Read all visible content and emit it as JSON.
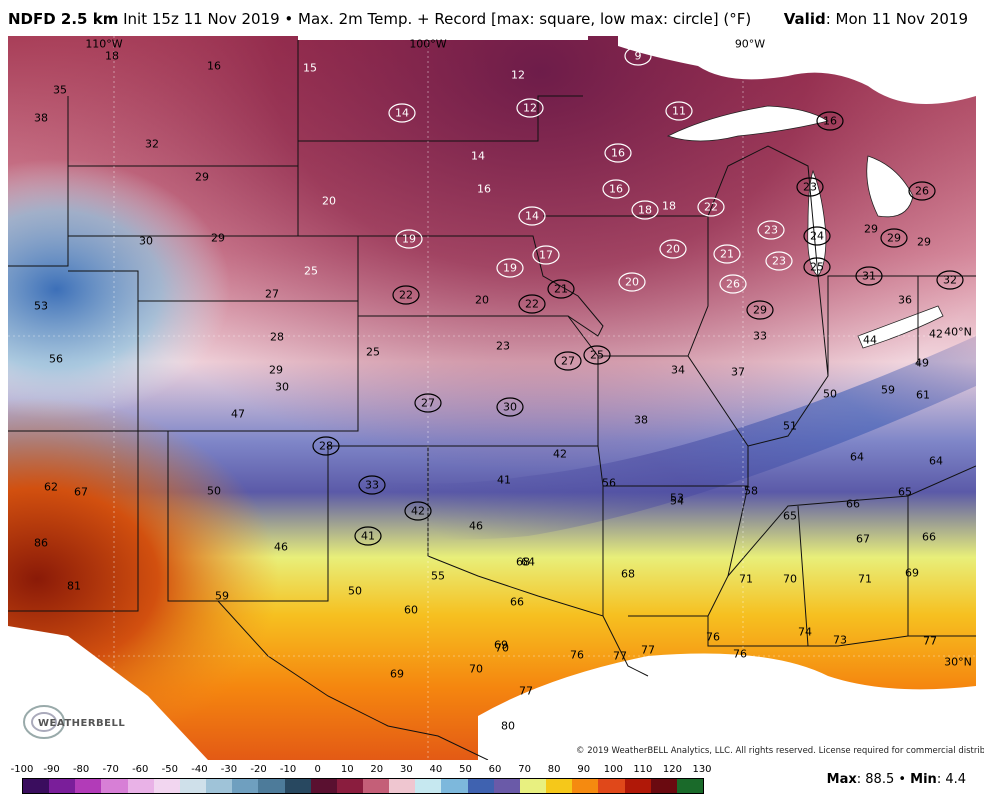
{
  "header": {
    "model": "NDFD 2.5 km",
    "description": "Init 15z 11 Nov 2019 • Max. 2m Temp. + Record [max: square, low max: circle] (°F)",
    "valid_label": "Valid",
    "valid_date": ": Mon 11 Nov 2019"
  },
  "map": {
    "lon_labels": [
      "110°W",
      "100°W",
      "90°W"
    ],
    "lat_labels": [
      "40°N",
      "30°N"
    ],
    "values": [
      {
        "v": "18"
      },
      {
        "v": "16"
      },
      {
        "v": "15"
      },
      {
        "v": "12"
      },
      {
        "v": "9",
        "c": 1
      },
      {
        "v": "35"
      },
      {
        "v": "38"
      },
      {
        "v": "14",
        "c": 1
      },
      {
        "v": "12",
        "c": 1
      },
      {
        "v": "11",
        "c": 1
      },
      {
        "v": "16",
        "c": 1
      },
      {
        "v": "16",
        "c": 1
      },
      {
        "v": "32"
      },
      {
        "v": "14"
      },
      {
        "v": "16",
        "c": 1
      },
      {
        "v": "18",
        "c": 1
      },
      {
        "v": "29"
      },
      {
        "v": "16"
      },
      {
        "v": "23",
        "c": 1
      },
      {
        "v": "26",
        "c": 1
      },
      {
        "v": "20"
      },
      {
        "v": "14",
        "c": 1
      },
      {
        "v": "18"
      },
      {
        "v": "22",
        "c": 1
      },
      {
        "v": "30"
      },
      {
        "v": "29"
      },
      {
        "v": "19",
        "c": 1
      },
      {
        "v": "17",
        "c": 1
      },
      {
        "v": "20",
        "c": 1
      },
      {
        "v": "21",
        "c": 1
      },
      {
        "v": "23",
        "c": 1
      },
      {
        "v": "24",
        "c": 1
      },
      {
        "v": "29"
      },
      {
        "v": "29",
        "c": 1
      },
      {
        "v": "29"
      },
      {
        "v": "25"
      },
      {
        "v": "19",
        "c": 1
      },
      {
        "v": "23",
        "c": 1
      },
      {
        "v": "25",
        "c": 1
      },
      {
        "v": "31",
        "c": 1
      },
      {
        "v": "32",
        "c": 1
      },
      {
        "v": "27"
      },
      {
        "v": "22",
        "c": 1
      },
      {
        "v": "20"
      },
      {
        "v": "22",
        "c": 1
      },
      {
        "v": "21",
        "c": 1
      },
      {
        "v": "20",
        "c": 1
      },
      {
        "v": "26",
        "c": 1
      },
      {
        "v": "36"
      },
      {
        "v": "53"
      },
      {
        "v": "29",
        "c": 1
      },
      {
        "v": "28"
      },
      {
        "v": "33"
      },
      {
        "v": "42"
      },
      {
        "v": "40°N"
      },
      {
        "v": "56"
      },
      {
        "v": "25"
      },
      {
        "v": "23"
      },
      {
        "v": "27",
        "c": 1
      },
      {
        "v": "25",
        "c": 1
      },
      {
        "v": "44"
      },
      {
        "v": "49"
      },
      {
        "v": "29"
      },
      {
        "v": "30"
      },
      {
        "v": "34"
      },
      {
        "v": "37"
      },
      {
        "v": "27",
        "c": 1
      },
      {
        "v": "30",
        "c": 1
      },
      {
        "v": "50"
      },
      {
        "v": "59"
      },
      {
        "v": "61"
      },
      {
        "v": "47"
      },
      {
        "v": "38"
      },
      {
        "v": "51"
      },
      {
        "v": "28",
        "c": 1
      },
      {
        "v": "42"
      },
      {
        "v": "64"
      },
      {
        "v": "64"
      },
      {
        "v": "62"
      },
      {
        "v": "67"
      },
      {
        "v": "50"
      },
      {
        "v": "33",
        "c": 1
      },
      {
        "v": "41"
      },
      {
        "v": "56"
      },
      {
        "v": "58"
      },
      {
        "v": "53"
      },
      {
        "v": "54"
      },
      {
        "v": "65"
      },
      {
        "v": "42",
        "c": 1
      },
      {
        "v": "46"
      },
      {
        "v": "65"
      },
      {
        "v": "66"
      },
      {
        "v": "86"
      },
      {
        "v": "46"
      },
      {
        "v": "41",
        "c": 1
      },
      {
        "v": "67"
      },
      {
        "v": "66"
      },
      {
        "v": "68"
      },
      {
        "v": "64"
      },
      {
        "v": "55"
      },
      {
        "v": "68"
      },
      {
        "v": "71"
      },
      {
        "v": "70"
      },
      {
        "v": "71"
      },
      {
        "v": "69"
      },
      {
        "v": "81"
      },
      {
        "v": "50"
      },
      {
        "v": "59"
      },
      {
        "v": "66"
      },
      {
        "v": "60"
      },
      {
        "v": "74"
      },
      {
        "v": "76"
      },
      {
        "v": "73"
      },
      {
        "v": "77"
      },
      {
        "v": "69"
      },
      {
        "v": "70"
      },
      {
        "v": "76"
      },
      {
        "v": "77"
      },
      {
        "v": "77"
      },
      {
        "v": "76"
      },
      {
        "v": "69"
      },
      {
        "v": "70"
      },
      {
        "v": "77"
      },
      {
        "v": "80"
      }
    ],
    "copyright": "© 2019 WeatherBELL Analytics, LLC. All rights reserved. License required for commercial distribution.",
    "logo_text": "WEATHERBELL"
  },
  "colorbar": {
    "labels": [
      "-100",
      "-90",
      "-80",
      "-70",
      "-60",
      "-50",
      "-40",
      "-30",
      "-20",
      "-10",
      "0",
      "10",
      "20",
      "30",
      "40",
      "50",
      "60",
      "70",
      "80",
      "90",
      "100",
      "110",
      "120",
      "130"
    ],
    "colors": [
      "#3a0d5e",
      "#7a1e9a",
      "#b23bb8",
      "#d77fd6",
      "#e9b2e7",
      "#f2d6f0",
      "#cfe0ea",
      "#9fc3d8",
      "#6f9fbf",
      "#4d7b9a",
      "#284860",
      "#5a1030",
      "#8a1d3e",
      "#c45f78",
      "#efc6d0",
      "#c6e8f0",
      "#7db8dc",
      "#3f62b0",
      "#6a5aa8",
      "#e8f080",
      "#f5c81a",
      "#f58a10",
      "#e0481a",
      "#b01808",
      "#6a0a10",
      "#1a6a2a"
    ],
    "max_label": "Max",
    "max_value": ": 88.5 • ",
    "min_label": "Min",
    "min_value": ": 4.4"
  }
}
